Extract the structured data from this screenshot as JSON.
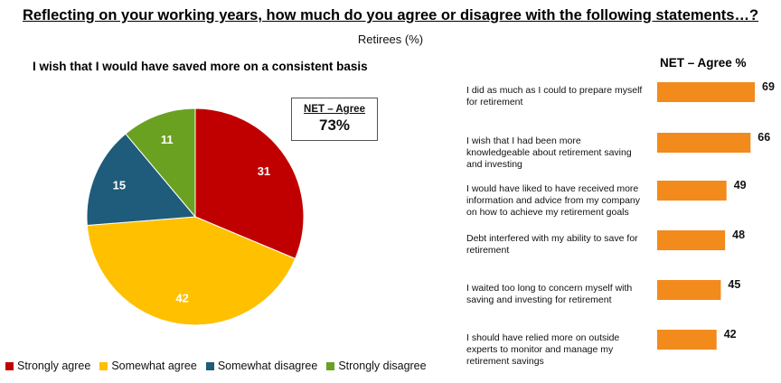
{
  "title": "Reflecting on your working years, how much do you agree or disagree with the following statements…?",
  "subtitle": "Retirees (%)",
  "pie_title": "I wish that I would have saved more on a consistent basis",
  "net_box": {
    "label": "NET – Agree",
    "value": "73%"
  },
  "bar_header": "NET – Agree %",
  "colors": {
    "strongly_agree": "#c00000",
    "somewhat_agree": "#ffc000",
    "somewhat_disagree": "#1f5b7a",
    "strongly_disagree": "#6aa121",
    "bar": "#f28a1c"
  },
  "legend": [
    {
      "label": "Strongly agree",
      "color": "#c00000"
    },
    {
      "label": "Somewhat agree",
      "color": "#ffc000"
    },
    {
      "label": "Somewhat disagree",
      "color": "#1f5b7a"
    },
    {
      "label": "Strongly disagree",
      "color": "#6aa121"
    }
  ],
  "chart_data": [
    {
      "type": "pie",
      "title": "I wish that I would have saved more on a consistent basis",
      "categories": [
        "Strongly agree",
        "Somewhat agree",
        "Somewhat disagree",
        "Strongly disagree"
      ],
      "values": [
        31,
        42,
        15,
        11
      ],
      "colors": [
        "#c00000",
        "#ffc000",
        "#1f5b7a",
        "#6aa121"
      ]
    },
    {
      "type": "bar",
      "orientation": "horizontal",
      "title": "NET – Agree %",
      "categories": [
        "I did as much as I could to prepare myself for retirement",
        "I wish that I had been more knowledgeable about retirement saving and investing",
        "I would have liked to have received more information and advice from my company on how to achieve my retirement goals",
        "Debt interfered with my ability to save for retirement",
        "I waited too long to concern myself with saving and investing for retirement",
        "I should have relied more on outside experts to monitor and manage my retirement savings"
      ],
      "category_lines": [
        [
          "I did as much as I could to prepare myself",
          "for retirement"
        ],
        [
          "I wish that I had been more",
          "knowledgeable about retirement saving",
          "and investing"
        ],
        [
          "I would have liked to have received more",
          "information and advice from my company",
          "on how to achieve my retirement goals"
        ],
        [
          "Debt interfered with my ability to save for",
          "retirement"
        ],
        [
          "I waited too long to concern myself with",
          "saving and investing for retirement"
        ],
        [
          "I should have relied more on outside",
          "experts to monitor and manage my",
          "retirement savings"
        ]
      ],
      "values": [
        69,
        66,
        49,
        48,
        45,
        42
      ],
      "color": "#f28a1c"
    }
  ]
}
